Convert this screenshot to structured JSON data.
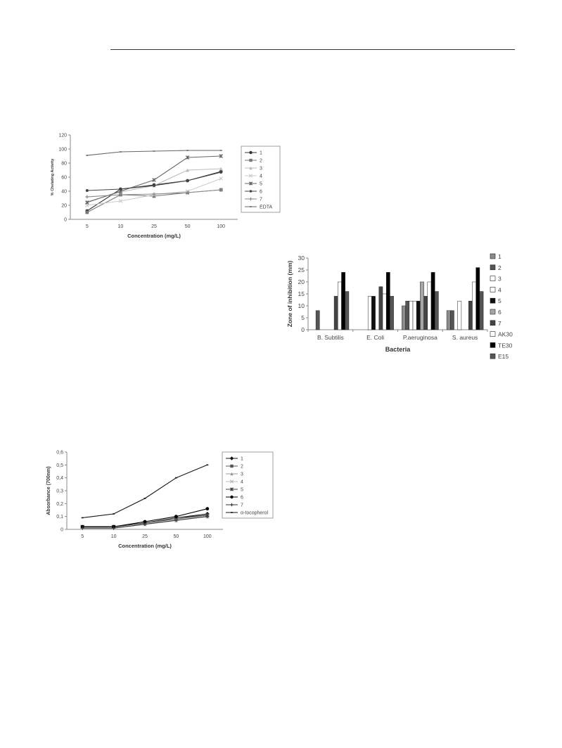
{
  "chart_data": [
    {
      "type": "line",
      "x_categories": [
        "5",
        "10",
        "25",
        "50",
        "100"
      ],
      "ylabel": "% Chelating Activity",
      "xlabel": "Concentration (mg/L)",
      "ylim": [
        0,
        120
      ],
      "yticks": [
        "0",
        "20",
        "40",
        "60",
        "80",
        "100",
        "120"
      ],
      "legend_position": "right",
      "series": [
        {
          "name": "1",
          "values": [
            12,
            43,
            49,
            55,
            68
          ],
          "color": "#333333",
          "marker": "circle"
        },
        {
          "name": "2",
          "values": [
            10,
            35,
            33,
            38,
            42
          ],
          "color": "#777777",
          "marker": "square"
        },
        {
          "name": "3",
          "values": [
            25,
            39,
            48,
            70,
            72
          ],
          "color": "#bbbbbb",
          "marker": "triangle"
        },
        {
          "name": "4",
          "values": [
            20,
            26,
            35,
            40,
            58
          ],
          "color": "#cccccc",
          "marker": "x"
        },
        {
          "name": "5",
          "values": [
            24,
            40,
            56,
            88,
            90
          ],
          "color": "#666666",
          "marker": "star"
        },
        {
          "name": "6",
          "values": [
            41,
            43,
            48,
            55,
            67
          ],
          "color": "#444444",
          "marker": "dot"
        },
        {
          "name": "7",
          "values": [
            32,
            35,
            36,
            38,
            42
          ],
          "color": "#888888",
          "marker": "plus"
        },
        {
          "name": "EDTA",
          "values": [
            91,
            96,
            97,
            98,
            98
          ],
          "color": "#666666",
          "marker": "dash"
        }
      ]
    },
    {
      "type": "bar",
      "categories": [
        "B. Subtilis",
        "E. Coli",
        "P.aeruginosa",
        "S. aureus"
      ],
      "ylabel": "Zone of inhibition (mm)",
      "xlabel": "Bacteria",
      "ylim": [
        0,
        30
      ],
      "yticks": [
        "0",
        "5",
        "10",
        "15",
        "20",
        "25",
        "30"
      ],
      "legend_position": "right",
      "series": [
        {
          "name": "1",
          "values": [
            0,
            0,
            10,
            8
          ],
          "color": "#8c8c8c"
        },
        {
          "name": "2",
          "values": [
            8,
            0,
            12,
            8
          ],
          "color": "#555555"
        },
        {
          "name": "3",
          "values": [
            0,
            0,
            12,
            0
          ],
          "color": "#ffffff"
        },
        {
          "name": "4",
          "values": [
            0,
            14,
            12,
            12
          ],
          "color": "#ffffff"
        },
        {
          "name": "5",
          "values": [
            0,
            14,
            12,
            0
          ],
          "color": "#111111"
        },
        {
          "name": "6",
          "values": [
            0,
            0,
            20,
            0
          ],
          "color": "#a6a6a6"
        },
        {
          "name": "7",
          "values": [
            14,
            18,
            14,
            12
          ],
          "color": "#444444"
        },
        {
          "name": "AK30",
          "values": [
            20,
            15,
            20,
            20
          ],
          "color": "#ffffff"
        },
        {
          "name": "TE30",
          "values": [
            24,
            24,
            24,
            26
          ],
          "color": "#000000"
        },
        {
          "name": "E15",
          "values": [
            16,
            14,
            16,
            16
          ],
          "color": "#555555"
        }
      ]
    },
    {
      "type": "line",
      "x_categories": [
        "5",
        "10",
        "25",
        "50",
        "100"
      ],
      "ylabel": "Absorbance (700nm)",
      "xlabel": "Concentration (mg/L)",
      "ylim": [
        0,
        0.6
      ],
      "yticks": [
        "0",
        "0,1",
        "0,2",
        "0,3",
        "0,4",
        "0,5",
        "0,6"
      ],
      "legend_position": "right",
      "series": [
        {
          "name": "1",
          "values": [
            0.02,
            0.02,
            0.05,
            0.09,
            0.12
          ],
          "color": "#111111",
          "marker": "diamond"
        },
        {
          "name": "2",
          "values": [
            0.02,
            0.02,
            0.05,
            0.08,
            0.11
          ],
          "color": "#555555",
          "marker": "square"
        },
        {
          "name": "3",
          "values": [
            0.01,
            0.01,
            0.04,
            0.07,
            0.1
          ],
          "color": "#999999",
          "marker": "triangle"
        },
        {
          "name": "4",
          "values": [
            0.01,
            0.01,
            0.04,
            0.07,
            0.1
          ],
          "color": "#bbbbbb",
          "marker": "x"
        },
        {
          "name": "5",
          "values": [
            0.02,
            0.02,
            0.05,
            0.09,
            0.11
          ],
          "color": "#444444",
          "marker": "star"
        },
        {
          "name": "6",
          "values": [
            0.02,
            0.02,
            0.06,
            0.1,
            0.16
          ],
          "color": "#000000",
          "marker": "circle"
        },
        {
          "name": "7",
          "values": [
            0.01,
            0.01,
            0.04,
            0.07,
            0.1
          ],
          "color": "#333333",
          "marker": "plus"
        },
        {
          "name": "α-tocopherol",
          "values": [
            0.09,
            0.12,
            0.24,
            0.4,
            0.5
          ],
          "color": "#111111",
          "marker": "dash"
        }
      ]
    }
  ]
}
